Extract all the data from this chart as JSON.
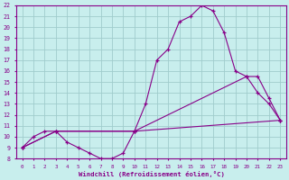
{
  "xlabel": "Windchill (Refroidissement éolien,°C)",
  "xlim": [
    -0.5,
    23.5
  ],
  "ylim": [
    8,
    22
  ],
  "xticks": [
    0,
    1,
    2,
    3,
    4,
    5,
    6,
    7,
    8,
    9,
    10,
    11,
    12,
    13,
    14,
    15,
    16,
    17,
    18,
    19,
    20,
    21,
    22,
    23
  ],
  "yticks": [
    8,
    9,
    10,
    11,
    12,
    13,
    14,
    15,
    16,
    17,
    18,
    19,
    20,
    21,
    22
  ],
  "bg_color": "#c8eeed",
  "grid_color": "#a0cccc",
  "line_color": "#880088",
  "curve1_x": [
    0,
    1,
    2,
    3,
    4,
    5,
    6,
    7,
    8,
    9,
    10,
    11,
    12,
    13,
    14,
    15,
    16,
    17,
    18,
    19,
    20,
    21,
    22,
    23
  ],
  "curve1_y": [
    9.0,
    10.0,
    10.5,
    10.5,
    9.5,
    9.0,
    8.5,
    8.0,
    8.0,
    8.5,
    10.5,
    13.0,
    17.0,
    18.0,
    20.5,
    21.0,
    22.0,
    21.5,
    19.5,
    16.0,
    15.5,
    14.0,
    13.0,
    11.5
  ],
  "curve2_x": [
    0,
    3,
    10,
    20,
    21,
    22,
    23
  ],
  "curve2_y": [
    9.0,
    10.5,
    10.5,
    15.5,
    15.5,
    13.5,
    11.5
  ],
  "curve3_x": [
    0,
    3,
    10,
    23
  ],
  "curve3_y": [
    9.0,
    10.5,
    10.5,
    11.5
  ]
}
